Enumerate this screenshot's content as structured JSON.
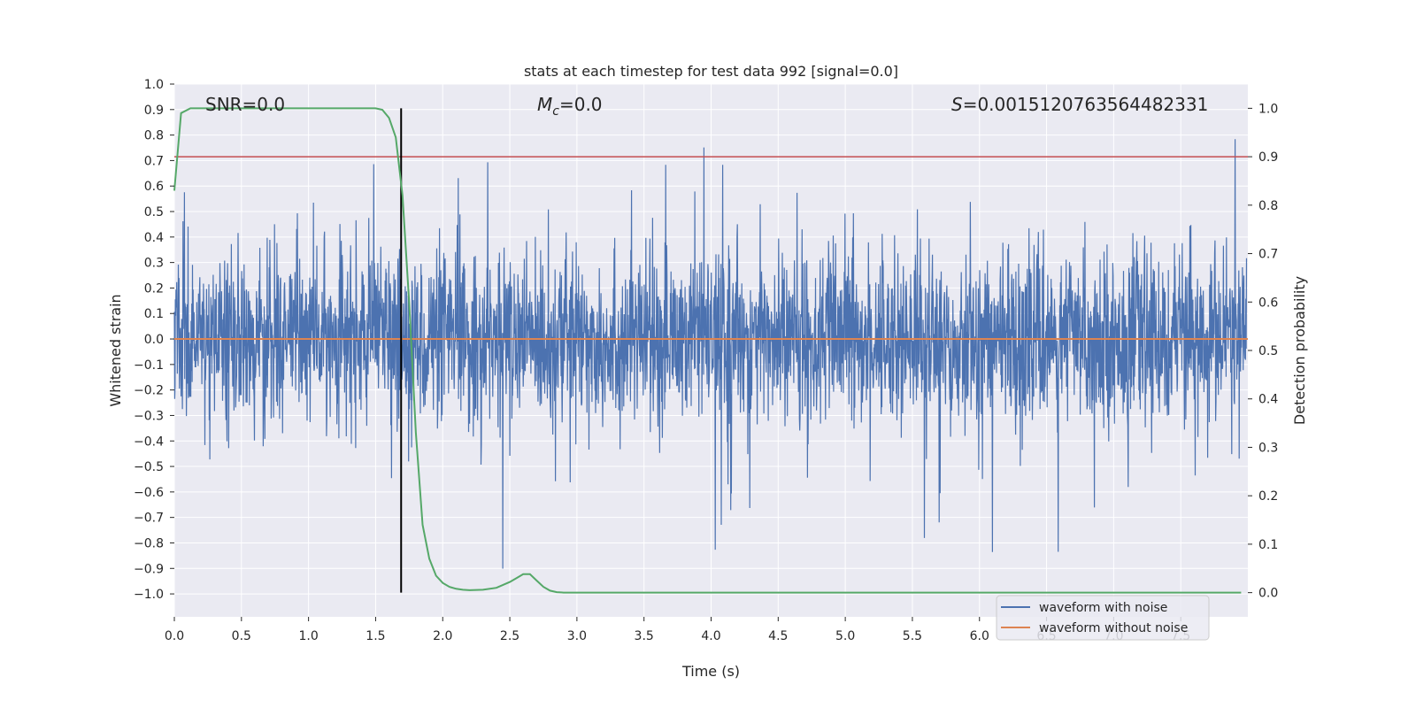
{
  "chart_data": {
    "type": "line",
    "title": "stats at each timestep for test data 992 [signal=0.0]",
    "xlabel": "Time (s)",
    "ylabel": "Whitened strain",
    "y2label": "Detection probability",
    "xlim": [
      0.0,
      8.0
    ],
    "ylim": [
      -1.09,
      1.0
    ],
    "y2lim": [
      -0.05,
      1.05
    ],
    "xticks": [
      "0.0",
      "0.5",
      "1.0",
      "1.5",
      "2.0",
      "2.5",
      "3.0",
      "3.5",
      "4.0",
      "4.5",
      "5.0",
      "5.5",
      "6.0",
      "6.5",
      "7.0",
      "7.5"
    ],
    "yticks": [
      "1.0",
      "0.9",
      "0.8",
      "0.7",
      "0.6",
      "0.5",
      "0.4",
      "0.3",
      "0.2",
      "0.1",
      "0.0",
      "-0.1",
      "-0.2",
      "-0.3",
      "-0.4",
      "-0.5",
      "-0.6",
      "-0.7",
      "-0.8",
      "-0.9",
      "-1.0"
    ],
    "y2ticks": [
      "1.0",
      "0.9",
      "0.8",
      "0.7",
      "0.6",
      "0.5",
      "0.4",
      "0.3",
      "0.2",
      "0.1",
      "0.0"
    ],
    "annotations": {
      "snr": "SNR=0.0",
      "mc_symbol": "M",
      "mc_sub": "c",
      "mc_value": "=0.0",
      "s_symbol": "S",
      "s_value": "=0.0015120763564482331"
    },
    "series": [
      {
        "name": "waveform with noise",
        "color": "#4c72b0",
        "axis": "left",
        "description": "whitened noise, typical envelope ±0.35 with spikes up to ~0.9 and down to ~-1.0"
      },
      {
        "name": "waveform without noise",
        "color": "#dd8452",
        "axis": "left",
        "values_constant": 0.0
      },
      {
        "name": "detection probability",
        "color": "#55a868",
        "axis": "right",
        "x": [
          0.0,
          0.05,
          0.12,
          0.2,
          0.5,
          1.0,
          1.4,
          1.5,
          1.55,
          1.6,
          1.65,
          1.7,
          1.75,
          1.8,
          1.85,
          1.9,
          1.95,
          2.0,
          2.05,
          2.1,
          2.15,
          2.2,
          2.3,
          2.4,
          2.5,
          2.55,
          2.6,
          2.65,
          2.7,
          2.75,
          2.8,
          2.85,
          2.9,
          3.0,
          7.5,
          7.95
        ],
        "y": [
          0.83,
          0.99,
          1.0,
          1.0,
          1.0,
          1.0,
          1.0,
          1.0,
          0.997,
          0.98,
          0.94,
          0.82,
          0.6,
          0.33,
          0.14,
          0.07,
          0.035,
          0.02,
          0.012,
          0.008,
          0.006,
          0.005,
          0.006,
          0.01,
          0.022,
          0.03,
          0.038,
          0.038,
          0.025,
          0.012,
          0.004,
          0.001,
          0.0,
          0.0,
          0.0,
          0.0
        ]
      }
    ],
    "threshold_line": {
      "value": 0.9,
      "axis": "right",
      "color": "#c44e52"
    },
    "marker_line": {
      "x": 1.69,
      "color": "#000000"
    },
    "legend": {
      "placement": "bottom-right",
      "entries": [
        {
          "label": "waveform with noise",
          "color": "#4c72b0"
        },
        {
          "label": "waveform without noise",
          "color": "#dd8452"
        }
      ]
    },
    "style": {
      "background": "#eaeaf2",
      "grid": true,
      "grid_color": "#ffffff"
    }
  }
}
